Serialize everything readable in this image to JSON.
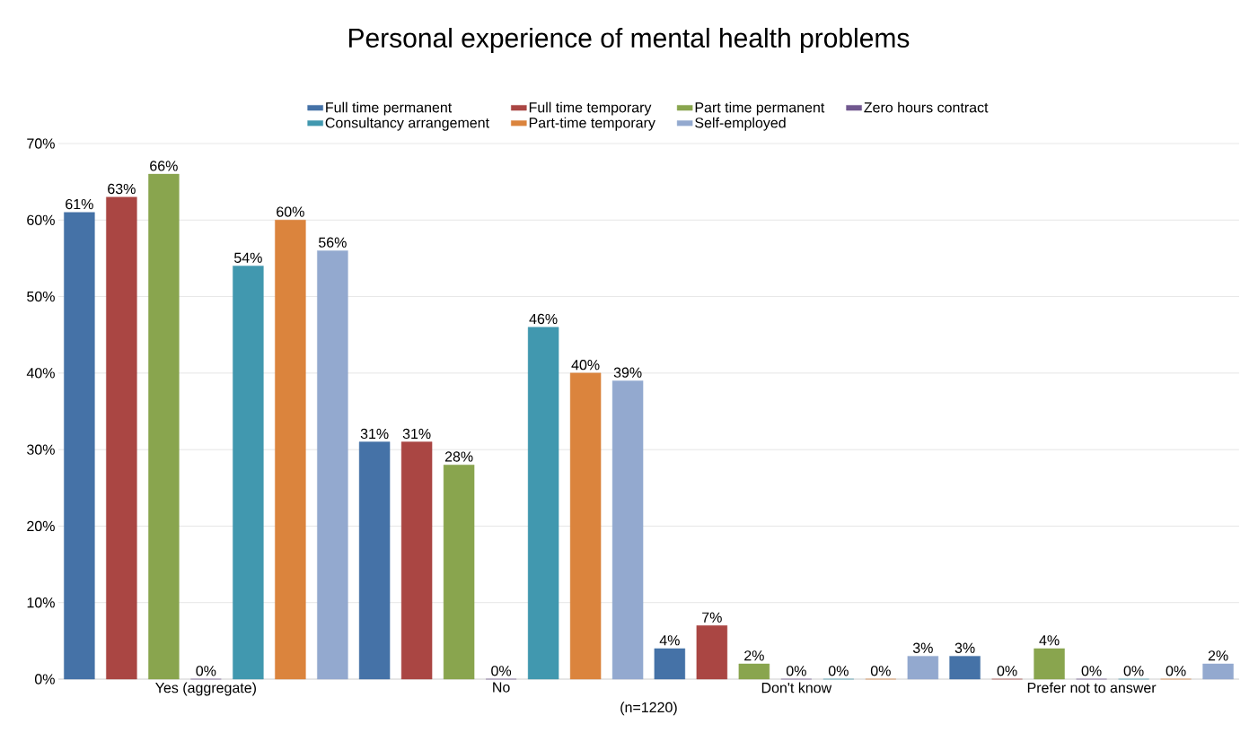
{
  "chart_data": {
    "type": "bar",
    "title": "Personal experience of mental health problems",
    "xlabel": "(n=1220)",
    "categories": [
      "Yes (aggregate)",
      "No",
      "Don't know",
      "Prefer not to answer"
    ],
    "series": [
      {
        "name": "Full time permanent",
        "color": "#4572a7",
        "values": [
          61,
          31,
          4,
          3
        ],
        "value_labels": [
          "61%",
          "31%",
          "4%",
          "3%"
        ]
      },
      {
        "name": "Full time temporary",
        "color": "#aa4643",
        "values": [
          63,
          31,
          7,
          0
        ],
        "value_labels": [
          "63%",
          "31%",
          "7%",
          "0%"
        ]
      },
      {
        "name": "Part time permanent",
        "color": "#89a54e",
        "values": [
          66,
          28,
          2,
          4
        ],
        "value_labels": [
          "66%",
          "28%",
          "2%",
          "4%"
        ]
      },
      {
        "name": "Zero hours contract",
        "color": "#71588f",
        "values": [
          0,
          0,
          0,
          0
        ],
        "value_labels": [
          "0%",
          "0%",
          "0%",
          "0%"
        ]
      },
      {
        "name": "Consultancy arrangement",
        "color": "#4198af",
        "values": [
          54,
          46,
          0,
          0
        ],
        "value_labels": [
          "54%",
          "46%",
          "0%",
          "0%"
        ]
      },
      {
        "name": "Part-time temporary",
        "color": "#db843d",
        "values": [
          60,
          40,
          0,
          0
        ],
        "value_labels": [
          "60%",
          "40%",
          "0%",
          "0%"
        ]
      },
      {
        "name": "Self-employed",
        "color": "#93a9cf",
        "values": [
          56,
          39,
          3,
          2
        ],
        "value_labels": [
          "56%",
          "39%",
          "3%",
          "2%"
        ]
      }
    ],
    "ylim": [
      0,
      70
    ],
    "yticks": [
      {
        "value": 0,
        "label": "0%"
      },
      {
        "value": 10,
        "label": "10%"
      },
      {
        "value": 20,
        "label": "20%"
      },
      {
        "value": 30,
        "label": "30%"
      },
      {
        "value": 40,
        "label": "40%"
      },
      {
        "value": 50,
        "label": "50%"
      },
      {
        "value": 60,
        "label": "60%"
      },
      {
        "value": 70,
        "label": "70%"
      }
    ],
    "grid": "y",
    "legend": "top"
  }
}
